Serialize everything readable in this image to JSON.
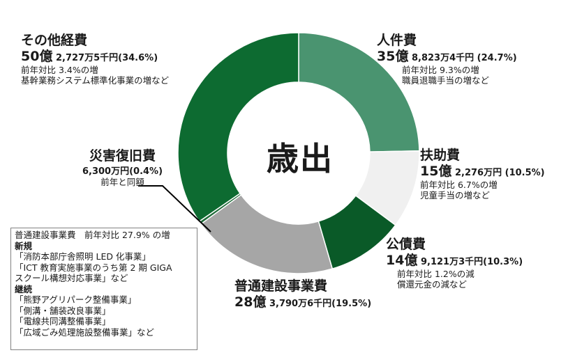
{
  "chart_data": {
    "type": "donut",
    "title": "歳出",
    "slices": [
      {
        "name": "人件費",
        "amount": "35億8,823万4千円",
        "percent": 24.7,
        "color": "#4a9470"
      },
      {
        "name": "扶助費",
        "amount": "15億2,276万円",
        "percent": 10.5,
        "color": "#f0f0f0"
      },
      {
        "name": "公債費",
        "amount": "14億9,121万3千円",
        "percent": 10.3,
        "color": "#0a5a28"
      },
      {
        "name": "普通建設事業費",
        "amount": "28億3,790万6千円",
        "percent": 19.5,
        "color": "#a6a6a6"
      },
      {
        "name": "災害復旧費",
        "amount": "6,300万円",
        "percent": 0.4,
        "color": "#1e6b38"
      },
      {
        "name": "その他経費",
        "amount": "50億2,727万5千円",
        "percent": 34.6,
        "color": "#0d6b31"
      }
    ]
  },
  "labels": {
    "other": {
      "name": "その他経費",
      "big": "50億",
      "rest": "2,727万5千円(34.6%)",
      "note1": "前年対比 3.4%の増",
      "note2": "基幹業務システム標準化事業の増など"
    },
    "personnel": {
      "name": "人件費",
      "big": "35億",
      "rest": "8,823万4千円 (24.7%)",
      "note1": "前年対比 9.3%の増",
      "note2": "職員退職手当の増など"
    },
    "assistance": {
      "name": "扶助費",
      "big": "15億",
      "rest": "2,276万円 (10.5%)",
      "note1": "前年対比 6.7%の増",
      "note2": "児童手当の増など"
    },
    "debt": {
      "name": "公債費",
      "big": "14億",
      "rest": "9,121万3千円(10.3%)",
      "note1": "前年対比 1.2%の減",
      "note2": "償還元金の減など"
    },
    "construction": {
      "name": "普通建設事業費",
      "big": "28億",
      "rest": "3,790万6千円(19.5%)"
    },
    "disaster": {
      "name": "災害復旧費",
      "amount": "6,300万円(0.4%)",
      "note1": "前年と同額"
    }
  },
  "box": {
    "head": "普通建設事業費　前年対比 27.9% の増",
    "new_label": "新規",
    "new_items": [
      "「消防本部庁舎照明 LED 化事業」",
      "「ICT 教育実施事業のうち第 2 期 GIGA",
      "スクール構想対応事業」など"
    ],
    "cont_label": "継続",
    "cont_items": [
      "「熊野アグリパーク整備事業」",
      "「側溝・舗装改良事業」",
      "「電線共同溝整備事業」",
      "「広域ごみ処理施設整備事業」など"
    ]
  }
}
